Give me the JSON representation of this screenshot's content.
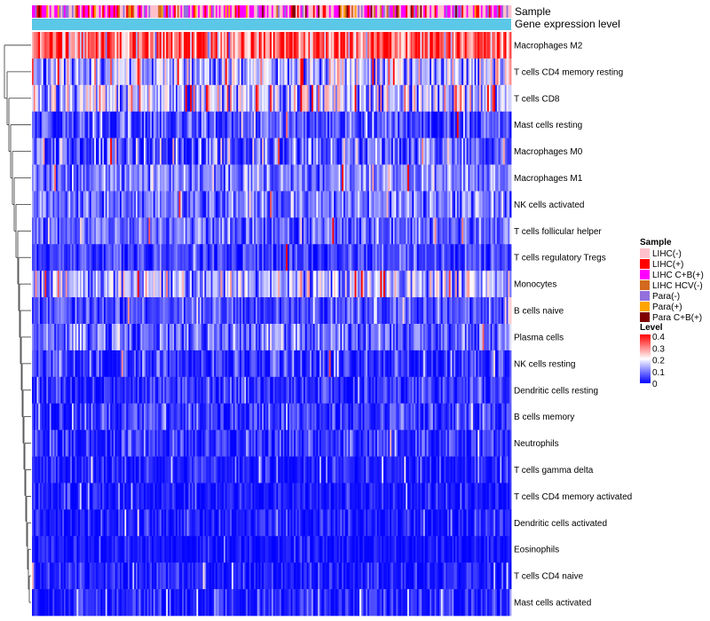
{
  "chart_data": {
    "type": "heatmap",
    "title": "",
    "annotation_tracks": [
      "Sample",
      "Gene expression level"
    ],
    "rows": [
      "Macrophages M2",
      "T cells CD4 memory resting",
      "T cells CD8",
      "Mast cells resting",
      "Macrophages M0",
      "Macrophages M1",
      "NK cells activated",
      "T cells follicular helper",
      "T cells regulatory  Tregs",
      "Monocytes",
      "B cells naive",
      "Plasma cells",
      "NK cells resting",
      "Dendritic cells resting",
      "B cells memory",
      "Neutrophils",
      "T cells gamma delta",
      "T cells CD4 memory activated",
      "Dendritic cells activated",
      "Eosinophils",
      "T cells CD4 naive",
      "Mast cells activated"
    ],
    "row_mean_level": [
      0.32,
      0.15,
      0.16,
      0.06,
      0.07,
      0.1,
      0.09,
      0.08,
      0.05,
      0.14,
      0.06,
      0.08,
      0.03,
      0.035,
      0.04,
      0.04,
      0.02,
      0.015,
      0.02,
      0.015,
      0.02,
      0.02
    ],
    "row_spread": [
      0.09,
      0.08,
      0.09,
      0.05,
      0.08,
      0.05,
      0.05,
      0.05,
      0.04,
      0.07,
      0.04,
      0.05,
      0.05,
      0.04,
      0.05,
      0.04,
      0.03,
      0.03,
      0.03,
      0.02,
      0.03,
      0.05
    ],
    "sample_columns": 300,
    "sample_legend": {
      "title": "Sample",
      "entries": [
        {
          "label": "LIHC(-)",
          "color": "#ffc0cb"
        },
        {
          "label": "LIHC(+)",
          "color": "#ff0000"
        },
        {
          "label": "LIHC C+B(+)",
          "color": "#ff00ff"
        },
        {
          "label": "LIHC HCV(-)",
          "color": "#d2691e"
        },
        {
          "label": "Para(-)",
          "color": "#9370db"
        },
        {
          "label": "Para(+)",
          "color": "#ffa500"
        },
        {
          "label": "Para C+B(+)",
          "color": "#800000"
        }
      ]
    },
    "level_legend": {
      "title": "Level",
      "ticks": [
        "0.4",
        "0.3",
        "0.2",
        "0.1",
        "0"
      ],
      "range": [
        0,
        0.4
      ],
      "colors": [
        "#0000ff",
        "#ffffff",
        "#ff0000"
      ]
    },
    "gene_expression_color": "#5ac8e6"
  }
}
